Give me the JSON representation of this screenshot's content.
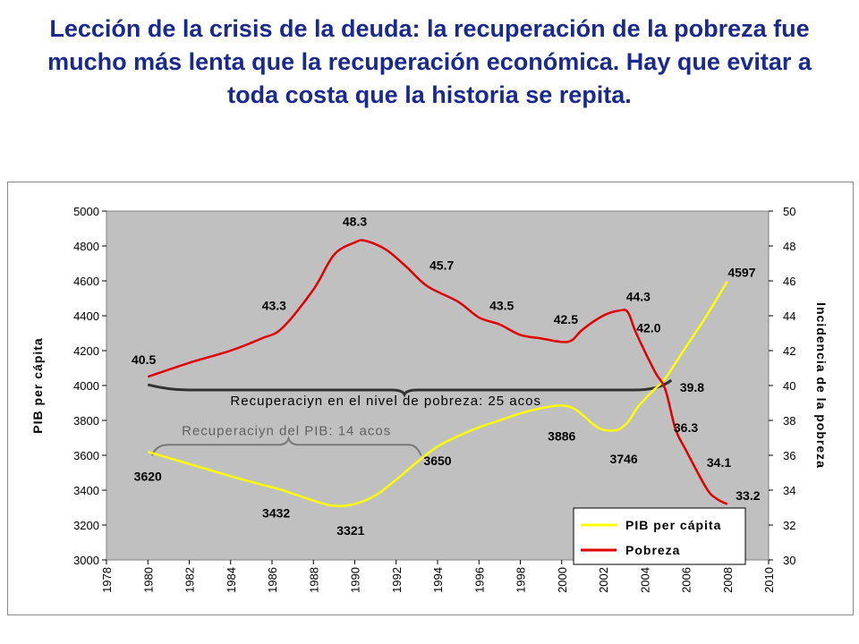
{
  "slide": {
    "title": "Lección de la crisis de la deuda: la recuperación de la pobreza fue mucho más lenta que la recuperación económica. Hay que evitar a toda costa que la historia se repita."
  },
  "chart_data": {
    "type": "line",
    "ylabel": "PIB per cápita",
    "y2label": "Incidencia de la pobreza",
    "xlim": [
      1978,
      2010
    ],
    "ylim": [
      3000,
      5000
    ],
    "y2lim": [
      30,
      50
    ],
    "x_ticks": [
      "1978",
      "1980",
      "1982",
      "1984",
      "1986",
      "1988",
      "1990",
      "1992",
      "1994",
      "1996",
      "1998",
      "2000",
      "2002",
      "2004",
      "2006",
      "2008",
      "2010"
    ],
    "y_ticks": [
      "3000",
      "3200",
      "3400",
      "3600",
      "3800",
      "4000",
      "4200",
      "4400",
      "4600",
      "4800",
      "5000"
    ],
    "y2_ticks": [
      "30",
      "32",
      "34",
      "36",
      "38",
      "40",
      "42",
      "44",
      "46",
      "48",
      "50"
    ],
    "grid": false,
    "legend_position": "bottom-right",
    "series": [
      {
        "name": "PIB per cápita",
        "axis": "left",
        "color": "#ffff00",
        "x": [
          1980,
          1982,
          1984,
          1985.5,
          1986.5,
          1988,
          1989,
          1990,
          1991,
          1992,
          1993,
          1994,
          1995,
          1996,
          1997,
          1998,
          1999,
          2000,
          2000.7,
          2001.5,
          2002,
          2002.7,
          2003.2,
          2003.7,
          2004.5,
          2005,
          2006,
          2007,
          2008
        ],
        "values": [
          3620,
          3550,
          3480,
          3432,
          3400,
          3340,
          3310,
          3321,
          3370,
          3460,
          3560,
          3650,
          3710,
          3760,
          3800,
          3840,
          3870,
          3886,
          3860,
          3780,
          3746,
          3746,
          3790,
          3880,
          3980,
          4040,
          4220,
          4400,
          4597
        ]
      },
      {
        "name": "Pobreza",
        "axis": "right",
        "color": "#e00000",
        "x": [
          1980,
          1982,
          1984,
          1985.5,
          1986.5,
          1988,
          1989,
          1990,
          1990.5,
          1991.5,
          1992.5,
          1993.5,
          1995,
          1996,
          1997,
          1998,
          1999,
          2000,
          2000.5,
          2001,
          2002,
          2002.8,
          2003.2,
          2003.6,
          2004.5,
          2005,
          2005.5,
          2006,
          2007,
          2007.5,
          2008
        ],
        "values": [
          40.5,
          41.3,
          42.0,
          42.7,
          43.3,
          45.5,
          47.5,
          48.2,
          48.3,
          47.8,
          46.8,
          45.7,
          44.8,
          43.9,
          43.5,
          42.9,
          42.7,
          42.5,
          42.6,
          43.2,
          44.0,
          44.3,
          44.2,
          43.0,
          40.8,
          39.8,
          37.5,
          36.3,
          34.1,
          33.5,
          33.2
        ]
      }
    ],
    "data_labels": [
      {
        "text": "40.5",
        "x": 1979.8,
        "y2": 41.5
      },
      {
        "text": "43.3",
        "x": 1986.1,
        "y2": 44.6
      },
      {
        "text": "48.3",
        "x": 1990.0,
        "y2": 49.4
      },
      {
        "text": "45.7",
        "x": 1994.2,
        "y2": 46.9
      },
      {
        "text": "43.5",
        "x": 1997.1,
        "y2": 44.6
      },
      {
        "text": "42.5",
        "x": 2000.2,
        "y2": 43.8
      },
      {
        "text": "44.3",
        "x": 2003.7,
        "y2": 45.1
      },
      {
        "text": "42.0",
        "x": 2004.2,
        "y2": 43.3
      },
      {
        "text": "39.8",
        "x": 2006.3,
        "y2": 39.9
      },
      {
        "text": "36.3",
        "x": 2006.0,
        "y2": 37.6
      },
      {
        "text": "34.1",
        "x": 2007.6,
        "y2": 35.6
      },
      {
        "text": "33.2",
        "x": 2009.0,
        "y2": 33.7
      },
      {
        "text": "4597",
        "x": 2008.7,
        "y": 4650
      },
      {
        "text": "3620",
        "x": 1980.0,
        "y": 3480
      },
      {
        "text": "3432",
        "x": 1986.2,
        "y": 3270
      },
      {
        "text": "3321",
        "x": 1989.8,
        "y": 3170
      },
      {
        "text": "3650",
        "x": 1994.0,
        "y": 3570
      },
      {
        "text": "3886",
        "x": 2000.0,
        "y": 3710
      },
      {
        "text": "3746",
        "x": 2003.0,
        "y": 3580
      }
    ],
    "annotations": [
      {
        "text": "Recuperaciyn en el nivel de pobreza: 25 acos",
        "color": "#000000"
      },
      {
        "text": "Recuperaciyn del PIB: 14 acos",
        "color": "#606060"
      }
    ]
  }
}
